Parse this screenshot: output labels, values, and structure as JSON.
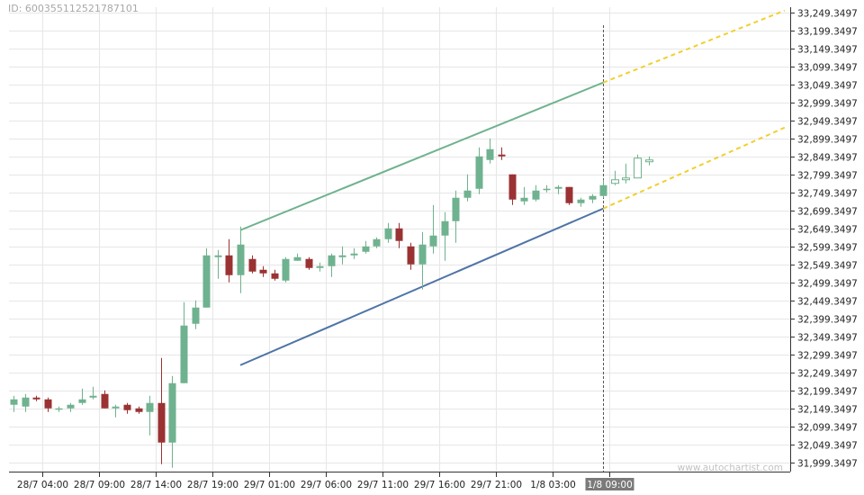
{
  "header": {
    "id_text": "ID: 600355112521787101"
  },
  "watermark": "www.autochartist.com",
  "chart_data": {
    "type": "candlestick",
    "title": "",
    "grid": true,
    "ylim": [
      31974.35,
      33264.35
    ],
    "y_ticks": [
      "33,249.3497",
      "33,199.3497",
      "33,149.3497",
      "33,099.3497",
      "33,049.3497",
      "32,999.3497",
      "32,949.3497",
      "32,899.3497",
      "32,849.3497",
      "32,799.3497",
      "32,749.3497",
      "32,699.3497",
      "32,649.3497",
      "32,599.3497",
      "32,549.3497",
      "32,499.3497",
      "32,449.3497",
      "32,399.3497",
      "32,349.3497",
      "32,299.3497",
      "32,249.3497",
      "32,199.3497",
      "32,149.3497",
      "32,099.3497",
      "32,049.3497",
      "31,999.3497"
    ],
    "y_tick_values": [
      33249.35,
      33199.35,
      33149.35,
      33099.35,
      33049.35,
      32999.35,
      32949.35,
      32899.35,
      32849.35,
      32799.35,
      32749.35,
      32699.35,
      32649.35,
      32599.35,
      32549.35,
      32499.35,
      32449.35,
      32399.35,
      32349.35,
      32299.35,
      32249.35,
      32199.35,
      32149.35,
      32099.35,
      32049.35,
      31999.35
    ],
    "x_tick_labels": [
      "28/7 04:00",
      "28/7 09:00",
      "28/7 14:00",
      "28/7 19:00",
      "29/7 01:00",
      "29/7 06:00",
      "29/7 11:00",
      "29/7 16:00",
      "29/7 21:00",
      "1/8 03:00",
      "1/8 09:00"
    ],
    "x_tick_index": [
      2,
      7,
      12,
      17,
      22,
      27,
      32,
      37,
      42,
      47,
      52
    ],
    "highlight_tick": "1/8 09:00",
    "current_index": 52,
    "candles": [
      {
        "o": 32160,
        "h": 32185,
        "l": 32140,
        "c": 32175
      },
      {
        "o": 32155,
        "h": 32190,
        "l": 32140,
        "c": 32180
      },
      {
        "o": 32180,
        "h": 32185,
        "l": 32170,
        "c": 32175
      },
      {
        "o": 32175,
        "h": 32180,
        "l": 32140,
        "c": 32150
      },
      {
        "o": 32150,
        "h": 32155,
        "l": 32140,
        "c": 32150
      },
      {
        "o": 32150,
        "h": 32165,
        "l": 32140,
        "c": 32160
      },
      {
        "o": 32165,
        "h": 32205,
        "l": 32160,
        "c": 32175
      },
      {
        "o": 32180,
        "h": 32210,
        "l": 32175,
        "c": 32185
      },
      {
        "o": 32190,
        "h": 32200,
        "l": 32150,
        "c": 32150
      },
      {
        "o": 32150,
        "h": 32160,
        "l": 32125,
        "c": 32155
      },
      {
        "o": 32160,
        "h": 32165,
        "l": 32135,
        "c": 32145
      },
      {
        "o": 32150,
        "h": 32155,
        "l": 32135,
        "c": 32140
      },
      {
        "o": 32140,
        "h": 32185,
        "l": 32075,
        "c": 32165
      },
      {
        "o": 32165,
        "h": 32290,
        "l": 31995,
        "c": 32055
      },
      {
        "o": 32055,
        "h": 32240,
        "l": 31985,
        "c": 32220
      },
      {
        "o": 32220,
        "h": 32445,
        "l": 32220,
        "c": 32380
      },
      {
        "o": 32385,
        "h": 32450,
        "l": 32370,
        "c": 32430
      },
      {
        "o": 32430,
        "h": 32595,
        "l": 32430,
        "c": 32575
      },
      {
        "o": 32570,
        "h": 32590,
        "l": 32510,
        "c": 32575
      },
      {
        "o": 32575,
        "h": 32620,
        "l": 32500,
        "c": 32520
      },
      {
        "o": 32520,
        "h": 32655,
        "l": 32470,
        "c": 32605
      },
      {
        "o": 32565,
        "h": 32575,
        "l": 32525,
        "c": 32530
      },
      {
        "o": 32535,
        "h": 32545,
        "l": 32515,
        "c": 32525
      },
      {
        "o": 32525,
        "h": 32535,
        "l": 32505,
        "c": 32510
      },
      {
        "o": 32505,
        "h": 32570,
        "l": 32500,
        "c": 32565
      },
      {
        "o": 32560,
        "h": 32580,
        "l": 32560,
        "c": 32570
      },
      {
        "o": 32565,
        "h": 32570,
        "l": 32535,
        "c": 32540
      },
      {
        "o": 32540,
        "h": 32555,
        "l": 32530,
        "c": 32545
      },
      {
        "o": 32545,
        "h": 32580,
        "l": 32515,
        "c": 32575
      },
      {
        "o": 32570,
        "h": 32600,
        "l": 32550,
        "c": 32575
      },
      {
        "o": 32575,
        "h": 32595,
        "l": 32565,
        "c": 32580
      },
      {
        "o": 32585,
        "h": 32615,
        "l": 32580,
        "c": 32600
      },
      {
        "o": 32600,
        "h": 32625,
        "l": 32595,
        "c": 32620
      },
      {
        "o": 32620,
        "h": 32665,
        "l": 32610,
        "c": 32650
      },
      {
        "o": 32650,
        "h": 32665,
        "l": 32595,
        "c": 32615
      },
      {
        "o": 32600,
        "h": 32610,
        "l": 32535,
        "c": 32550
      },
      {
        "o": 32550,
        "h": 32640,
        "l": 32480,
        "c": 32605
      },
      {
        "o": 32600,
        "h": 32715,
        "l": 32580,
        "c": 32630
      },
      {
        "o": 32630,
        "h": 32695,
        "l": 32560,
        "c": 32670
      },
      {
        "o": 32670,
        "h": 32755,
        "l": 32610,
        "c": 32735
      },
      {
        "o": 32735,
        "h": 32800,
        "l": 32725,
        "c": 32755
      },
      {
        "o": 32760,
        "h": 32875,
        "l": 32745,
        "c": 32850
      },
      {
        "o": 32840,
        "h": 32900,
        "l": 32830,
        "c": 32870
      },
      {
        "o": 32855,
        "h": 32875,
        "l": 32840,
        "c": 32850
      },
      {
        "o": 32800,
        "h": 32800,
        "l": 32715,
        "c": 32730
      },
      {
        "o": 32725,
        "h": 32765,
        "l": 32715,
        "c": 32735
      },
      {
        "o": 32730,
        "h": 32770,
        "l": 32725,
        "c": 32755
      },
      {
        "o": 32760,
        "h": 32770,
        "l": 32750,
        "c": 32760
      },
      {
        "o": 32760,
        "h": 32770,
        "l": 32745,
        "c": 32765
      },
      {
        "o": 32765,
        "h": 32765,
        "l": 32715,
        "c": 32720
      },
      {
        "o": 32720,
        "h": 32735,
        "l": 32710,
        "c": 32730
      },
      {
        "o": 32730,
        "h": 32745,
        "l": 32720,
        "c": 32740
      },
      {
        "o": 32740,
        "h": 32785,
        "l": 32735,
        "c": 32770
      },
      {
        "o": 32775,
        "h": 32810,
        "l": 32770,
        "c": 32785
      },
      {
        "o": 32785,
        "h": 32830,
        "l": 32775,
        "c": 32790
      },
      {
        "o": 32790,
        "h": 32855,
        "l": 32790,
        "c": 32845
      },
      {
        "o": 32835,
        "h": 32850,
        "l": 32825,
        "c": 32840
      }
    ],
    "future_start_index": 53,
    "channel": {
      "upper": {
        "from": {
          "i": 20,
          "v": 32645
        },
        "to": {
          "i": 52,
          "v": 33055
        }
      },
      "lower": {
        "from": {
          "i": 20,
          "v": 32270
        },
        "to": {
          "i": 52,
          "v": 32705
        }
      },
      "upper_projection": {
        "from": {
          "i": 52,
          "v": 33055
        },
        "to": {
          "i": 68,
          "v": 33255
        }
      },
      "lower_projection": {
        "from": {
          "i": 52,
          "v": 32705
        },
        "to": {
          "i": 68,
          "v": 32930
        }
      }
    },
    "colors": {
      "up": "#6fb28f",
      "down": "#9a3233",
      "upper_line": "#6fb28f",
      "lower_line": "#4e74a6",
      "projection": "#f1cf2c",
      "grid": "#e6e6e6",
      "axis": "#333333",
      "tick_text": "#222222",
      "highlight_bg": "#7a7a7a",
      "highlight_text": "#ffffff"
    }
  }
}
